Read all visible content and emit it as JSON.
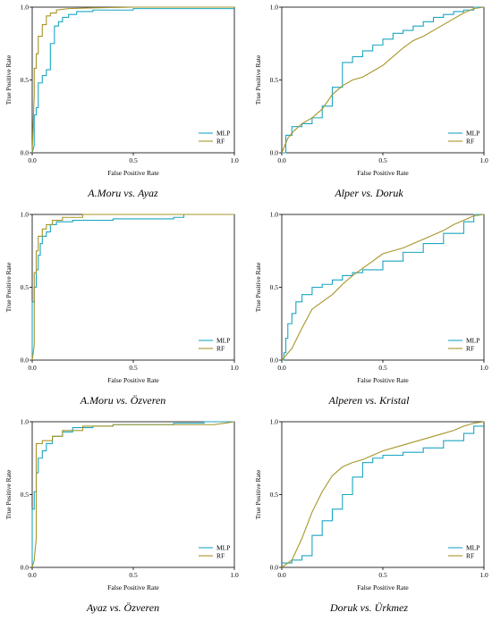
{
  "chart_data": [
    {
      "type": "line",
      "title": "A.Moru vs. Ayaz",
      "xlabel": "False Positive Rate",
      "ylabel": "True Positive Rate",
      "xlim": [
        0,
        1
      ],
      "ylim": [
        0,
        1
      ],
      "xticks": [
        "0.0",
        "0.5",
        "1.0"
      ],
      "yticks": [
        "0.0",
        "0.5",
        "1.0"
      ],
      "legend_position": "bottom-right",
      "grid": false,
      "series": [
        {
          "name": "MLP",
          "color": "#1BA6C2",
          "x": [
            0,
            0.01,
            0.01,
            0.02,
            0.02,
            0.03,
            0.03,
            0.05,
            0.05,
            0.07,
            0.07,
            0.09,
            0.09,
            0.11,
            0.11,
            0.13,
            0.13,
            0.15,
            0.15,
            0.18,
            0.18,
            0.22,
            0.22,
            0.3,
            0.3,
            0.5,
            0.5,
            1.0
          ],
          "y": [
            0,
            0.05,
            0.26,
            0.26,
            0.31,
            0.31,
            0.48,
            0.48,
            0.53,
            0.53,
            0.57,
            0.57,
            0.75,
            0.75,
            0.87,
            0.87,
            0.9,
            0.9,
            0.93,
            0.93,
            0.95,
            0.95,
            0.97,
            0.97,
            0.98,
            0.98,
            0.99,
            0.99
          ]
        },
        {
          "name": "RF",
          "color": "#A59528",
          "x": [
            0,
            0.005,
            0.01,
            0.01,
            0.02,
            0.02,
            0.03,
            0.03,
            0.05,
            0.05,
            0.07,
            0.07,
            0.09,
            0.09,
            0.12,
            0.12,
            0.18,
            0.3,
            0.5,
            1.0
          ],
          "y": [
            0,
            0.2,
            0.4,
            0.58,
            0.58,
            0.68,
            0.68,
            0.8,
            0.8,
            0.88,
            0.88,
            0.94,
            0.94,
            0.96,
            0.96,
            0.98,
            0.99,
            0.995,
            1.0,
            1.0
          ]
        }
      ]
    },
    {
      "type": "line",
      "title": "Alper vs. Doruk",
      "xlabel": "False Positive Rate",
      "ylabel": "True Positive Rate",
      "xlim": [
        0,
        1
      ],
      "ylim": [
        0,
        1
      ],
      "xticks": [
        "0.0",
        "0.5",
        "1.0"
      ],
      "yticks": [
        "0.0",
        "0.5",
        "1.0"
      ],
      "legend_position": "bottom-right",
      "grid": false,
      "series": [
        {
          "name": "MLP",
          "color": "#1BA6C2",
          "x": [
            0,
            0.02,
            0.02,
            0.05,
            0.05,
            0.1,
            0.1,
            0.15,
            0.15,
            0.2,
            0.2,
            0.25,
            0.25,
            0.3,
            0.3,
            0.35,
            0.35,
            0.4,
            0.4,
            0.45,
            0.45,
            0.5,
            0.5,
            0.55,
            0.55,
            0.6,
            0.6,
            0.65,
            0.65,
            0.7,
            0.7,
            0.75,
            0.75,
            0.8,
            0.8,
            0.85,
            0.85,
            0.9,
            0.9,
            0.95,
            0.95,
            1.0
          ],
          "y": [
            0,
            0,
            0.12,
            0.12,
            0.18,
            0.18,
            0.2,
            0.2,
            0.24,
            0.24,
            0.32,
            0.32,
            0.45,
            0.45,
            0.62,
            0.62,
            0.66,
            0.66,
            0.7,
            0.7,
            0.74,
            0.74,
            0.78,
            0.78,
            0.82,
            0.82,
            0.84,
            0.84,
            0.87,
            0.87,
            0.9,
            0.9,
            0.93,
            0.93,
            0.95,
            0.95,
            0.97,
            0.97,
            0.98,
            0.98,
            1.0,
            1.0
          ]
        },
        {
          "name": "RF",
          "color": "#A59528",
          "x": [
            0,
            0.03,
            0.06,
            0.1,
            0.15,
            0.2,
            0.25,
            0.3,
            0.35,
            0.4,
            0.45,
            0.5,
            0.55,
            0.6,
            0.65,
            0.7,
            0.75,
            0.8,
            0.85,
            0.9,
            0.95,
            1.0
          ],
          "y": [
            0,
            0.1,
            0.15,
            0.2,
            0.24,
            0.3,
            0.4,
            0.46,
            0.5,
            0.52,
            0.56,
            0.6,
            0.66,
            0.72,
            0.77,
            0.8,
            0.84,
            0.88,
            0.92,
            0.96,
            0.99,
            1.0
          ]
        }
      ]
    },
    {
      "type": "line",
      "title": "A.Moru vs. Özveren",
      "xlabel": "False Positive Rate",
      "ylabel": "True Positive Rate",
      "xlim": [
        0,
        1
      ],
      "ylim": [
        0,
        1
      ],
      "xticks": [
        "0.0",
        "0.5",
        "1.0"
      ],
      "yticks": [
        "0.0",
        "0.5",
        "1.0"
      ],
      "legend_position": "bottom-right",
      "grid": false,
      "series": [
        {
          "name": "MLP",
          "color": "#1BA6C2",
          "x": [
            0,
            0,
            0.01,
            0.01,
            0.02,
            0.02,
            0.03,
            0.03,
            0.04,
            0.04,
            0.05,
            0.05,
            0.07,
            0.07,
            0.09,
            0.09,
            0.12,
            0.12,
            0.2,
            0.2,
            0.4,
            0.4,
            0.7,
            0.7,
            0.75,
            0.75,
            1.0
          ],
          "y": [
            0,
            0.4,
            0.4,
            0.5,
            0.5,
            0.62,
            0.62,
            0.72,
            0.72,
            0.8,
            0.8,
            0.85,
            0.85,
            0.88,
            0.88,
            0.93,
            0.93,
            0.95,
            0.95,
            0.96,
            0.96,
            0.97,
            0.97,
            0.98,
            0.98,
            1.0,
            1.0
          ]
        },
        {
          "name": "RF",
          "color": "#A59528",
          "x": [
            0,
            0.01,
            0.01,
            0.02,
            0.02,
            0.03,
            0.03,
            0.05,
            0.05,
            0.07,
            0.07,
            0.1,
            0.1,
            0.15,
            0.15,
            0.25,
            0.25,
            0.4,
            1.0
          ],
          "y": [
            0,
            0.1,
            0.6,
            0.6,
            0.75,
            0.75,
            0.85,
            0.85,
            0.9,
            0.9,
            0.93,
            0.93,
            0.96,
            0.96,
            0.98,
            0.98,
            1.0,
            1.0,
            1.0
          ]
        }
      ]
    },
    {
      "type": "line",
      "title": "Alperen vs. Kristal",
      "xlabel": "False Positive Rate",
      "ylabel": "True Positive Rate",
      "xlim": [
        0,
        1
      ],
      "ylim": [
        0,
        1
      ],
      "xticks": [
        "0.0",
        "0.5",
        "1.0"
      ],
      "yticks": [
        "0.0",
        "0.5",
        "1.0"
      ],
      "legend_position": "bottom-right",
      "grid": false,
      "series": [
        {
          "name": "MLP",
          "color": "#1BA6C2",
          "x": [
            0,
            0.01,
            0.01,
            0.02,
            0.02,
            0.03,
            0.03,
            0.05,
            0.05,
            0.07,
            0.07,
            0.1,
            0.1,
            0.15,
            0.15,
            0.2,
            0.2,
            0.25,
            0.25,
            0.3,
            0.3,
            0.35,
            0.35,
            0.4,
            0.4,
            0.5,
            0.5,
            0.6,
            0.6,
            0.7,
            0.7,
            0.8,
            0.8,
            0.9,
            0.9,
            0.95,
            0.95,
            1.0
          ],
          "y": [
            0,
            0,
            0.05,
            0.05,
            0.15,
            0.15,
            0.25,
            0.25,
            0.32,
            0.32,
            0.4,
            0.4,
            0.45,
            0.45,
            0.5,
            0.5,
            0.52,
            0.52,
            0.55,
            0.55,
            0.58,
            0.58,
            0.6,
            0.6,
            0.62,
            0.62,
            0.68,
            0.68,
            0.74,
            0.74,
            0.8,
            0.8,
            0.87,
            0.87,
            0.95,
            0.95,
            1.0,
            1.0
          ]
        },
        {
          "name": "RF",
          "color": "#A59528",
          "x": [
            0,
            0.05,
            0.1,
            0.15,
            0.2,
            0.25,
            0.3,
            0.35,
            0.4,
            0.45,
            0.5,
            0.55,
            0.6,
            0.65,
            0.7,
            0.75,
            0.8,
            0.85,
            0.9,
            0.95,
            1.0
          ],
          "y": [
            0,
            0.08,
            0.22,
            0.35,
            0.4,
            0.45,
            0.52,
            0.58,
            0.63,
            0.68,
            0.73,
            0.75,
            0.77,
            0.8,
            0.83,
            0.86,
            0.89,
            0.93,
            0.96,
            0.99,
            1.0
          ]
        }
      ]
    },
    {
      "type": "line",
      "title": "Ayaz vs. Özveren",
      "xlabel": "False Positive Rate",
      "ylabel": "True Positive Rate",
      "xlim": [
        0,
        1
      ],
      "ylim": [
        0,
        1
      ],
      "xticks": [
        "0.0",
        "0.5",
        "1.0"
      ],
      "yticks": [
        "0.0",
        "0.5",
        "1.0"
      ],
      "legend_position": "bottom-right",
      "grid": false,
      "series": [
        {
          "name": "MLP",
          "color": "#1BA6C2",
          "x": [
            0,
            0,
            0.01,
            0.01,
            0.02,
            0.02,
            0.03,
            0.03,
            0.05,
            0.05,
            0.07,
            0.07,
            0.1,
            0.1,
            0.15,
            0.15,
            0.2,
            0.2,
            0.3,
            0.3,
            0.4,
            0.4,
            0.7,
            0.7,
            0.85,
            0.85,
            1.0
          ],
          "y": [
            0,
            0.4,
            0.4,
            0.52,
            0.52,
            0.65,
            0.65,
            0.75,
            0.75,
            0.8,
            0.8,
            0.85,
            0.85,
            0.9,
            0.9,
            0.93,
            0.93,
            0.96,
            0.96,
            0.97,
            0.97,
            0.98,
            0.98,
            0.99,
            0.99,
            1.0,
            1.0
          ]
        },
        {
          "name": "RF",
          "color": "#A59528",
          "x": [
            0,
            0.01,
            0.02,
            0.02,
            0.05,
            0.05,
            0.1,
            0.1,
            0.15,
            0.15,
            0.25,
            0.25,
            0.4,
            0.4,
            0.7,
            0.9,
            1.0
          ],
          "y": [
            0,
            0.05,
            0.2,
            0.85,
            0.85,
            0.87,
            0.87,
            0.9,
            0.9,
            0.94,
            0.94,
            0.97,
            0.97,
            0.98,
            0.98,
            0.98,
            1.0
          ]
        }
      ]
    },
    {
      "type": "line",
      "title": "Doruk vs. Ürkmez",
      "xlabel": "False Positive Rate",
      "ylabel": "True Positive Rate",
      "xlim": [
        0,
        1
      ],
      "ylim": [
        0,
        1
      ],
      "xticks": [
        "0.0",
        "0.5",
        "1.0"
      ],
      "yticks": [
        "0.0",
        "0.5",
        "1.0"
      ],
      "legend_position": "bottom-right",
      "grid": false,
      "series": [
        {
          "name": "MLP",
          "color": "#1BA6C2",
          "x": [
            0,
            0.05,
            0.05,
            0.1,
            0.1,
            0.15,
            0.15,
            0.2,
            0.2,
            0.25,
            0.25,
            0.3,
            0.3,
            0.35,
            0.35,
            0.4,
            0.4,
            0.45,
            0.45,
            0.5,
            0.5,
            0.6,
            0.6,
            0.7,
            0.7,
            0.8,
            0.8,
            0.9,
            0.9,
            0.95,
            0.95,
            1.0
          ],
          "y": [
            0.03,
            0.03,
            0.05,
            0.05,
            0.08,
            0.08,
            0.22,
            0.22,
            0.32,
            0.32,
            0.4,
            0.4,
            0.5,
            0.5,
            0.62,
            0.62,
            0.72,
            0.72,
            0.75,
            0.75,
            0.77,
            0.77,
            0.79,
            0.79,
            0.82,
            0.82,
            0.87,
            0.87,
            0.92,
            0.92,
            0.97,
            0.97
          ]
        },
        {
          "name": "RF",
          "color": "#A59528",
          "x": [
            0,
            0.05,
            0.1,
            0.15,
            0.2,
            0.25,
            0.3,
            0.35,
            0.4,
            0.45,
            0.5,
            0.55,
            0.6,
            0.65,
            0.7,
            0.75,
            0.8,
            0.85,
            0.9,
            0.95,
            1.0
          ],
          "y": [
            0,
            0.05,
            0.2,
            0.38,
            0.52,
            0.63,
            0.69,
            0.72,
            0.74,
            0.77,
            0.8,
            0.82,
            0.84,
            0.86,
            0.88,
            0.9,
            0.92,
            0.94,
            0.97,
            0.99,
            1.0
          ]
        }
      ]
    }
  ]
}
